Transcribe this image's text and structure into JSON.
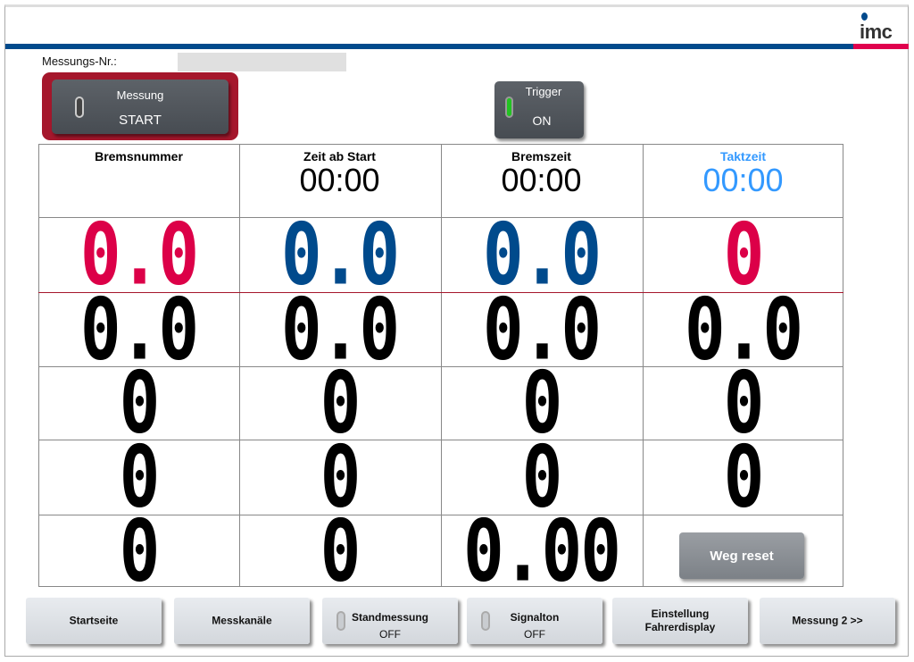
{
  "logo": {
    "text": "imc"
  },
  "header": {
    "messung_nr_label": "Messungs-Nr.:",
    "messung_nr_value": ""
  },
  "controls": {
    "start": {
      "title": "Messung",
      "state": "START"
    },
    "trigger": {
      "title": "Trigger",
      "state": "ON",
      "led_color": "#22c322"
    }
  },
  "columns": [
    {
      "title": "Bremsnummer",
      "value": "",
      "color": "#000000"
    },
    {
      "title": "Zeit ab Start",
      "value": "00:00",
      "color": "#000000"
    },
    {
      "title": "Bremszeit",
      "value": "00:00",
      "color": "#000000"
    },
    {
      "title": "Taktzeit",
      "value": "00:00",
      "color": "#3399ff"
    }
  ],
  "rows": [
    {
      "cells": [
        {
          "value": "0.0",
          "color": "#dc0048"
        },
        {
          "value": "0.0",
          "color": "#004a8c"
        },
        {
          "value": "0.0",
          "color": "#004a8c"
        },
        {
          "value": "0",
          "color": "#dc0048"
        }
      ]
    },
    {
      "cells": [
        {
          "value": "0.0",
          "color": "#000000"
        },
        {
          "value": "0.0",
          "color": "#000000"
        },
        {
          "value": "0.0",
          "color": "#000000"
        },
        {
          "value": "0.0",
          "color": "#000000"
        }
      ]
    },
    {
      "cells": [
        {
          "value": "0",
          "color": "#000000"
        },
        {
          "value": "0",
          "color": "#000000"
        },
        {
          "value": "0",
          "color": "#000000"
        },
        {
          "value": "0",
          "color": "#000000"
        }
      ]
    },
    {
      "cells": [
        {
          "value": "0",
          "color": "#000000"
        },
        {
          "value": "0",
          "color": "#000000"
        },
        {
          "value": "0",
          "color": "#000000"
        },
        {
          "value": "0",
          "color": "#000000"
        }
      ]
    },
    {
      "cells": [
        {
          "value": "0",
          "color": "#000000"
        },
        {
          "value": "0",
          "color": "#000000"
        },
        {
          "value": "0.00",
          "color": "#000000"
        }
      ]
    }
  ],
  "weg_reset": "Weg reset",
  "nav": [
    {
      "label": "Startseite"
    },
    {
      "label": "Messkanäle"
    },
    {
      "label": "Standmessung",
      "state": "OFF"
    },
    {
      "label": "Signalton",
      "state": "OFF"
    },
    {
      "label": "Einstellung Fahrerdisplay"
    },
    {
      "label": "Messung 2 >>"
    }
  ]
}
